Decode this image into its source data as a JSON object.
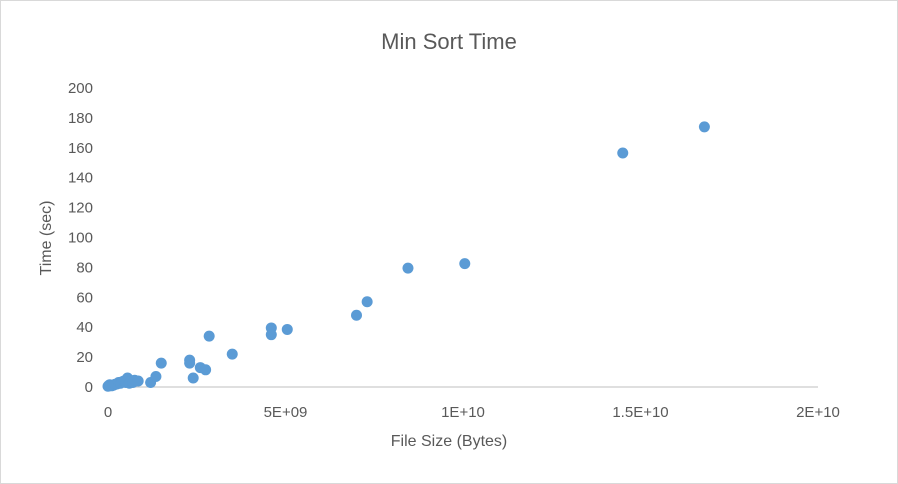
{
  "chart_data": {
    "type": "scatter",
    "title": "Min Sort Time",
    "xlabel": "File Size (Bytes)",
    "ylabel": "Time (sec)",
    "xlim": [
      0,
      20000000000
    ],
    "ylim": [
      0,
      200
    ],
    "x_ticks": [
      {
        "value": 0,
        "label": "0"
      },
      {
        "value": 5000000000,
        "label": "5E+09"
      },
      {
        "value": 10000000000,
        "label": "1E+10"
      },
      {
        "value": 15000000000,
        "label": "1.5E+10"
      },
      {
        "value": 20000000000,
        "label": "2E+10"
      }
    ],
    "y_ticks": [
      {
        "value": 0,
        "label": "0"
      },
      {
        "value": 20,
        "label": "20"
      },
      {
        "value": 40,
        "label": "40"
      },
      {
        "value": 60,
        "label": "60"
      },
      {
        "value": 80,
        "label": "80"
      },
      {
        "value": 100,
        "label": "100"
      },
      {
        "value": 120,
        "label": "120"
      },
      {
        "value": 140,
        "label": "140"
      },
      {
        "value": 160,
        "label": "160"
      },
      {
        "value": 180,
        "label": "180"
      },
      {
        "value": 200,
        "label": "200"
      }
    ],
    "grid": false,
    "marker_color": "#5b9bd5",
    "axis_color": "#bfbfbf",
    "points": [
      {
        "x": 0,
        "y": 0.5
      },
      {
        "x": 20000000,
        "y": 1
      },
      {
        "x": 50000000,
        "y": 1.5
      },
      {
        "x": 100000000,
        "y": 0.8
      },
      {
        "x": 150000000,
        "y": 1.2
      },
      {
        "x": 200000000,
        "y": 1.8
      },
      {
        "x": 250000000,
        "y": 2
      },
      {
        "x": 300000000,
        "y": 3
      },
      {
        "x": 350000000,
        "y": 2.5
      },
      {
        "x": 400000000,
        "y": 3.5
      },
      {
        "x": 450000000,
        "y": 4
      },
      {
        "x": 500000000,
        "y": 3
      },
      {
        "x": 550000000,
        "y": 6
      },
      {
        "x": 600000000,
        "y": 2.5
      },
      {
        "x": 650000000,
        "y": 4
      },
      {
        "x": 700000000,
        "y": 3
      },
      {
        "x": 750000000,
        "y": 4.5
      },
      {
        "x": 850000000,
        "y": 4
      },
      {
        "x": 1200000000,
        "y": 3
      },
      {
        "x": 1350000000,
        "y": 7
      },
      {
        "x": 1500000000,
        "y": 16
      },
      {
        "x": 2300000000,
        "y": 18
      },
      {
        "x": 2300000000,
        "y": 16
      },
      {
        "x": 2400000000,
        "y": 6
      },
      {
        "x": 2600000000,
        "y": 13
      },
      {
        "x": 2750000000,
        "y": 11.5
      },
      {
        "x": 2850000000,
        "y": 34
      },
      {
        "x": 3500000000,
        "y": 22
      },
      {
        "x": 4600000000,
        "y": 39.5
      },
      {
        "x": 4600000000,
        "y": 35
      },
      {
        "x": 5050000000,
        "y": 38.5
      },
      {
        "x": 7000000000,
        "y": 48
      },
      {
        "x": 7300000000,
        "y": 57
      },
      {
        "x": 8450000000,
        "y": 79.5
      },
      {
        "x": 10050000000,
        "y": 82.5
      },
      {
        "x": 14500000000,
        "y": 156.5
      },
      {
        "x": 16800000000,
        "y": 174
      }
    ]
  }
}
